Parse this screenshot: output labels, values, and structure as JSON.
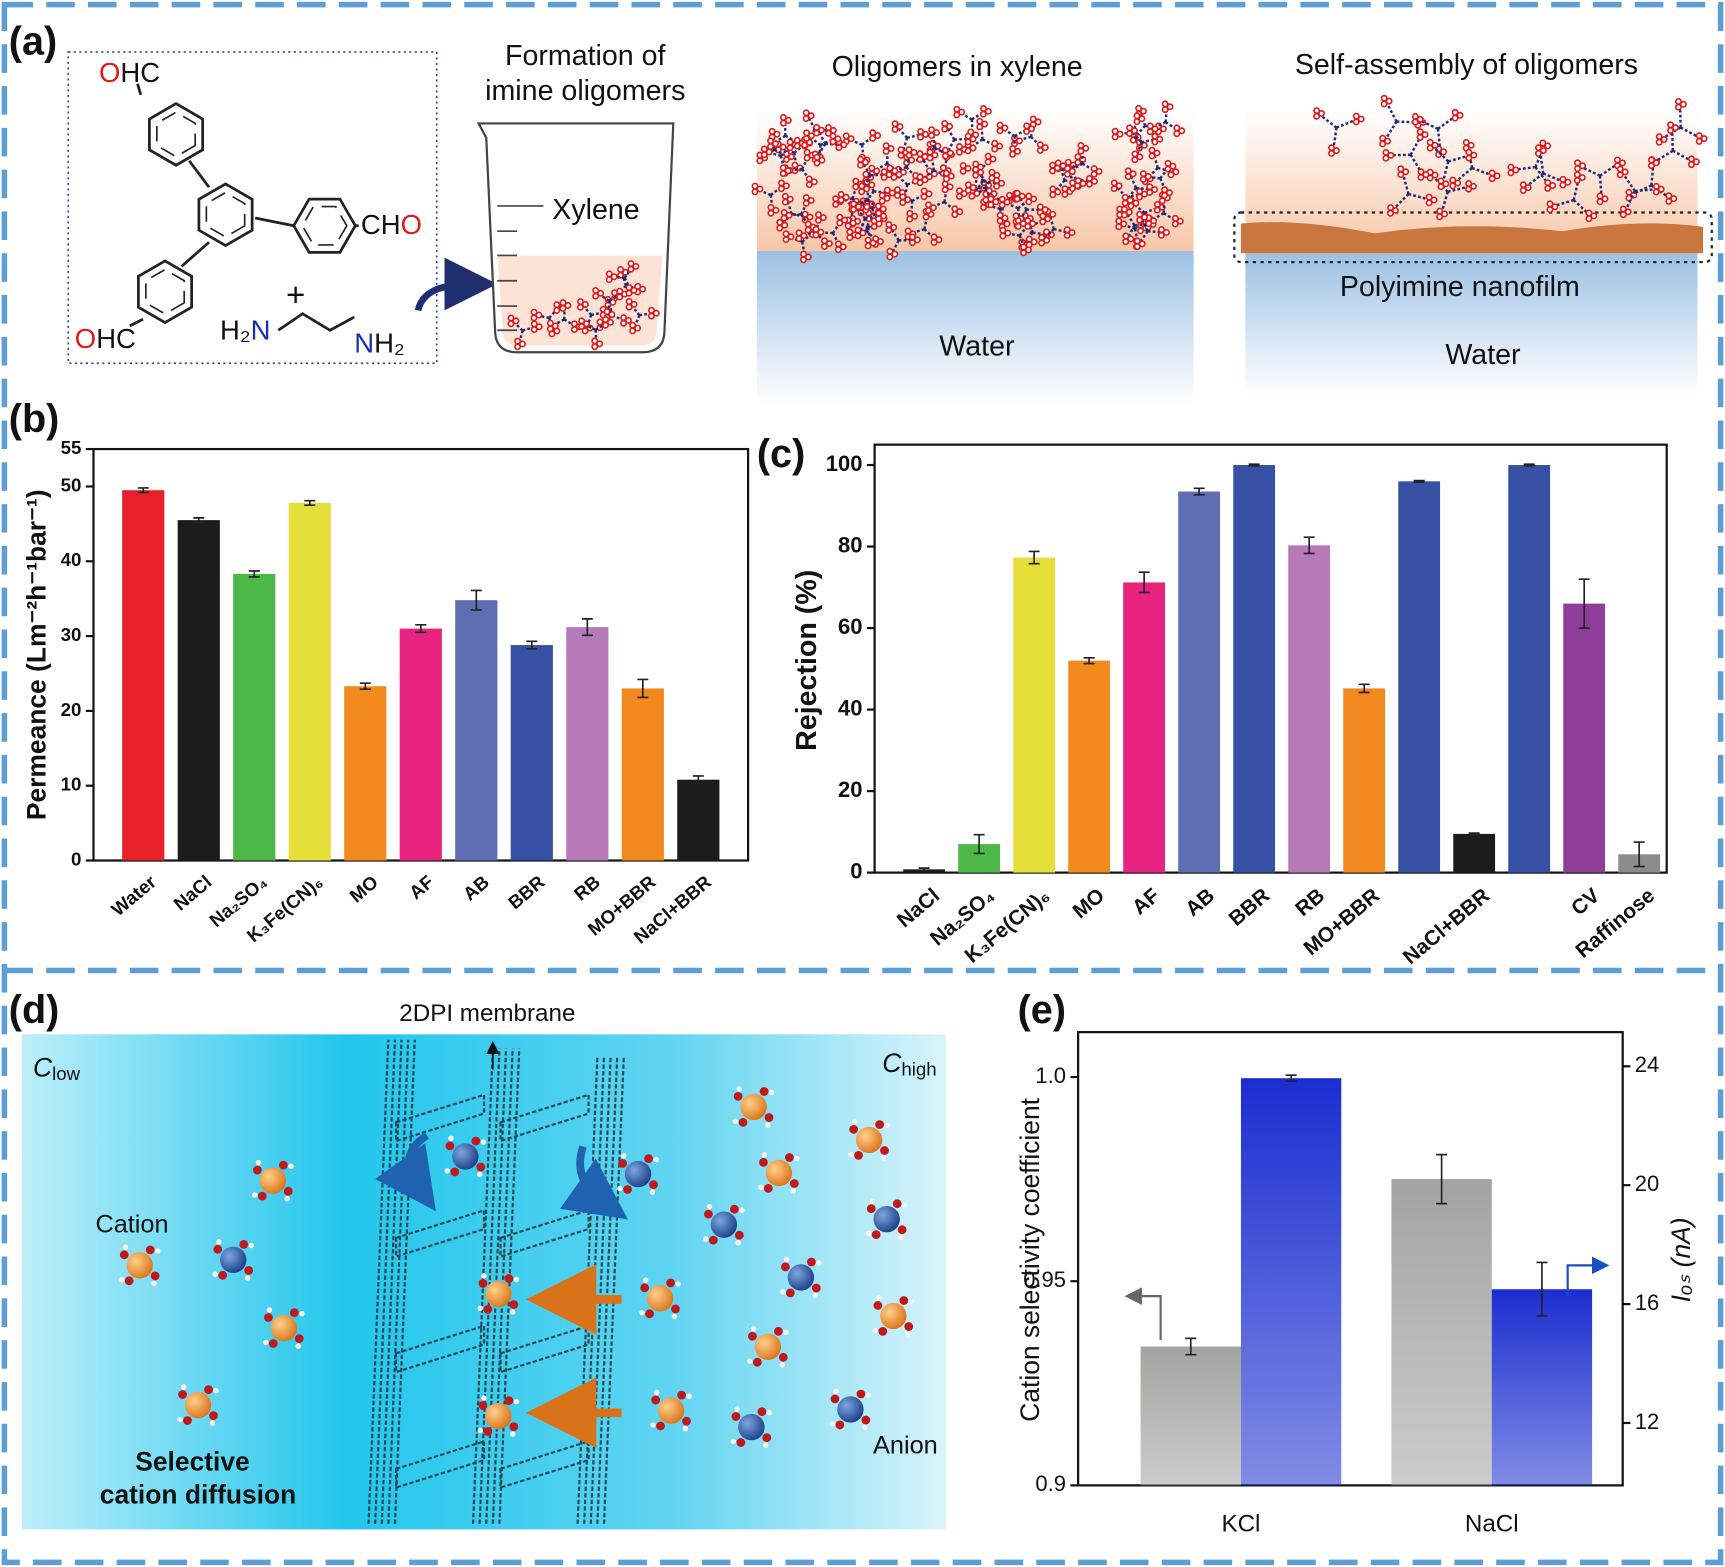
{
  "diagram_a": {
    "label": "(a)",
    "aldehyde_top": [
      "O",
      "HC"
    ],
    "aldehyde_right": [
      "CH",
      "O"
    ],
    "aldehyde_bottom": [
      "O",
      "HC"
    ],
    "plus": "+",
    "amine_left": [
      "H₂",
      "N"
    ],
    "amine_right": [
      "N",
      "H₂"
    ],
    "step_1": [
      "Formation of",
      "imine oligomers"
    ],
    "beaker_label": "Xylene",
    "step_2": "Oligomers in xylene",
    "step_2_phase": "Water",
    "step_3": "Self-assembly of oligomers",
    "step_3_film": "Polyimine nanofilm",
    "step_3_phase": "Water"
  },
  "diagram_d": {
    "label": "(d)",
    "membrane": "2DPI membrane",
    "c_low": [
      "C",
      "low"
    ],
    "c_high": [
      "C",
      "high"
    ],
    "cation": "Cation",
    "anion": "Anion",
    "caption": [
      "Selective",
      "cation diffusion"
    ]
  },
  "chart_data": [
    {
      "type": "bar",
      "panel_label": "(b)",
      "ylabel": "Permeance (Lm⁻²h⁻¹bar⁻¹)",
      "categories": [
        "Water",
        "NaCl",
        "Na₂SO₄",
        "K₃Fe(CN)₆",
        "MO",
        "AF",
        "AB",
        "BBR",
        "RB",
        "MO+BBR",
        "NaCl+BBR"
      ],
      "values": [
        49.5,
        45.5,
        38.3,
        47.8,
        23.3,
        31,
        34.8,
        28.8,
        31.2,
        23,
        10.8
      ],
      "errors": [
        0.3,
        0.3,
        0.4,
        0.3,
        0.4,
        0.5,
        1.3,
        0.5,
        1.1,
        1.2,
        0.5
      ],
      "colors": [
        "#e8202a",
        "#1c1c1c",
        "#4cb848",
        "#e6df3a",
        "#f28a1e",
        "#e8227f",
        "#5f6db3",
        "#3650a3",
        "#b67ab8",
        "#f2891e",
        "#1c1c1c"
      ],
      "ylim": [
        0,
        55
      ],
      "yticks": [
        0,
        10,
        20,
        30,
        40,
        50,
        55
      ]
    },
    {
      "type": "bar",
      "panel_label": "(c)",
      "ylabel": "Rejection (%)",
      "categories": [
        "NaCl",
        "Na₂SO₄",
        "K₃Fe(CN)₆",
        "MO",
        "AF",
        "AB",
        "BBR",
        "RB",
        "MO+BBR",
        null,
        "NaCl+BBR",
        null,
        "CV",
        "Raffinose"
      ],
      "values": [
        0.8,
        7,
        77.3,
        52,
        71.2,
        93.5,
        100,
        80.3,
        45.2,
        96,
        9.5,
        100,
        66,
        4.5
      ],
      "errors": [
        0.3,
        2.3,
        1.5,
        0.7,
        2.5,
        0.8,
        0.2,
        2,
        1,
        0.2,
        0.2,
        0.2,
        6,
        3
      ],
      "colors": [
        "#1c1c1c",
        "#4cb848",
        "#e6df3a",
        "#f28a1e",
        "#e8227f",
        "#5f6db3",
        "#3650a3",
        "#b67ab8",
        "#f2891e",
        "#3650a3",
        "#1c1c1c",
        "#3650a3",
        "#8e3e98",
        "#8c8c8c"
      ],
      "ylim": [
        0,
        105
      ],
      "yticks": [
        0,
        20,
        40,
        60,
        80,
        100
      ]
    },
    {
      "type": "bar",
      "panel_label": "(e)",
      "ylabel": "Cation selectivity coefficient",
      "y2label": "Iₒₛ (nA)",
      "categories": [
        "KCl",
        "NaCl"
      ],
      "series": [
        {
          "color": "#a3a39f",
          "values": [
            0.934,
            0.975
          ],
          "errors": [
            0.002,
            0.006
          ]
        },
        {
          "color": "#1a2ed0",
          "axis": "y2",
          "values": [
            23.6,
            16.5
          ],
          "errors": [
            0.1,
            0.9
          ]
        }
      ],
      "ylim": [
        0.9,
        1.011
      ],
      "yticks": [
        0.9,
        0.95,
        {
          "value": 1,
          "label": "1.0"
        }
      ],
      "y2lim": [
        9.9,
        25.15
      ],
      "y2ticks": [
        12,
        16,
        20,
        24
      ]
    }
  ]
}
